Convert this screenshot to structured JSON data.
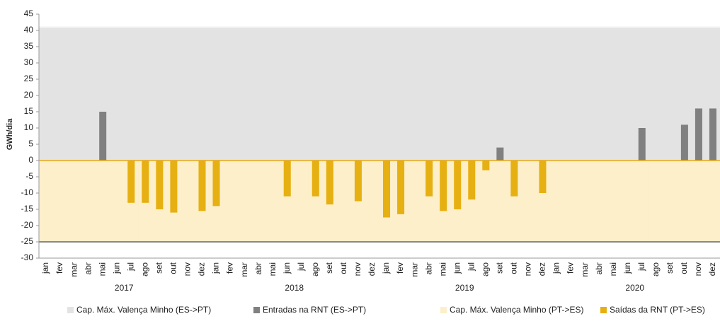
{
  "chart_data": {
    "type": "bar",
    "ylabel": "GWh/dia",
    "ylim": [
      -30,
      45
    ],
    "yticks": [
      -30,
      -25,
      -20,
      -15,
      -10,
      -5,
      0,
      5,
      10,
      15,
      20,
      25,
      30,
      35,
      40,
      45
    ],
    "categories": [
      "jan",
      "fev",
      "mar",
      "abr",
      "mai",
      "jun",
      "jul",
      "ago",
      "set",
      "out",
      "nov",
      "dez",
      "jan",
      "fev",
      "mar",
      "abr",
      "mai",
      "jun",
      "jul",
      "ago",
      "set",
      "out",
      "nov",
      "dez",
      "jan",
      "fev",
      "mar",
      "abr",
      "mai",
      "jun",
      "jul",
      "ago",
      "set",
      "out",
      "nov",
      "dez",
      "jan",
      "fev",
      "mar",
      "abr",
      "mai",
      "jun",
      "jul",
      "ago",
      "set",
      "out",
      "nov",
      "dez"
    ],
    "years": [
      "2017",
      "2018",
      "2019",
      "2020"
    ],
    "series": [
      {
        "name": "Cap. Máx. Valença Minho (ES->PT)",
        "color": "#e3e3e3",
        "kind": "capacity",
        "values": [
          41,
          41,
          41,
          41,
          41,
          41,
          41,
          41,
          41,
          41,
          41,
          41,
          41,
          41,
          41,
          41,
          41,
          41,
          41,
          41,
          41,
          41,
          41,
          41,
          41,
          41,
          41,
          41,
          41,
          41,
          41,
          41,
          41,
          41,
          41,
          41,
          41,
          41,
          41,
          41,
          41,
          41,
          41,
          41,
          41,
          41,
          41,
          41
        ]
      },
      {
        "name": "Entradas na RNT (ES->PT)",
        "color": "#808080",
        "kind": "flow",
        "values": [
          null,
          null,
          null,
          null,
          15,
          null,
          null,
          null,
          null,
          null,
          null,
          null,
          null,
          null,
          null,
          null,
          null,
          null,
          null,
          null,
          null,
          null,
          null,
          null,
          null,
          null,
          null,
          null,
          null,
          null,
          null,
          null,
          4,
          null,
          null,
          null,
          null,
          null,
          null,
          null,
          null,
          null,
          10,
          null,
          null,
          11,
          16,
          16
        ]
      },
      {
        "name": "Cap. Máx. Valença Minho (PT->ES)",
        "color": "#fcefc9",
        "kind": "capacity",
        "values": [
          -25,
          -25,
          -25,
          -25,
          -25,
          -25,
          -25,
          -25,
          -25,
          -25,
          -25,
          -25,
          -25,
          -25,
          -25,
          -25,
          -25,
          -25,
          -25,
          -25,
          -25,
          -25,
          -25,
          -25,
          -25,
          -25,
          -25,
          -25,
          -25,
          -25,
          -25,
          -25,
          -25,
          -25,
          -25,
          -25,
          -25,
          -25,
          -25,
          -25,
          -25,
          -25,
          -25,
          -25,
          -25,
          -25,
          -25,
          -25
        ]
      },
      {
        "name": "Saídas da RNT (PT->ES)",
        "color": "#e6b012",
        "kind": "flow",
        "values": [
          null,
          null,
          null,
          null,
          null,
          null,
          -13,
          -13,
          -15,
          -16,
          null,
          -15.5,
          -14,
          null,
          null,
          null,
          null,
          -11,
          null,
          -11,
          -13.5,
          null,
          -12.5,
          null,
          -17.5,
          -16.5,
          null,
          -11,
          -15.5,
          -15,
          -12,
          -3,
          null,
          -11,
          null,
          -10,
          null,
          null,
          null,
          null,
          null,
          null,
          null,
          null,
          null,
          null,
          null,
          null
        ]
      }
    ]
  }
}
